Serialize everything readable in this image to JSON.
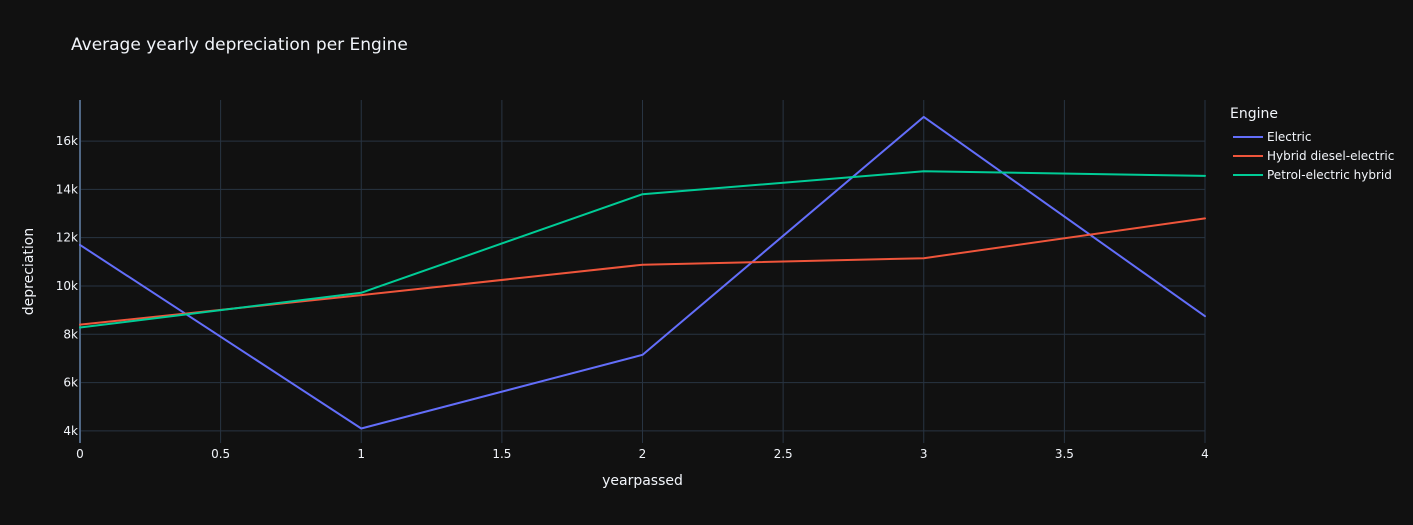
{
  "chart_data": {
    "type": "line",
    "title": "Average yearly depreciation per Engine",
    "xlabel": "yearpassed",
    "ylabel": "depreciation",
    "xlim": [
      0,
      4
    ],
    "ylim": [
      3500,
      17700
    ],
    "x_ticks": [
      {
        "value": 0,
        "label": "0"
      },
      {
        "value": 0.5,
        "label": "0.5"
      },
      {
        "value": 1,
        "label": "1"
      },
      {
        "value": 1.5,
        "label": "1.5"
      },
      {
        "value": 2,
        "label": "2"
      },
      {
        "value": 2.5,
        "label": "2.5"
      },
      {
        "value": 3,
        "label": "3"
      },
      {
        "value": 3.5,
        "label": "3.5"
      },
      {
        "value": 4,
        "label": "4"
      }
    ],
    "y_ticks": [
      {
        "value": 4000,
        "label": "4k"
      },
      {
        "value": 6000,
        "label": "6k"
      },
      {
        "value": 8000,
        "label": "8k"
      },
      {
        "value": 10000,
        "label": "10k"
      },
      {
        "value": 12000,
        "label": "12k"
      },
      {
        "value": 14000,
        "label": "14k"
      },
      {
        "value": 16000,
        "label": "16k"
      }
    ],
    "grid": true,
    "legend": {
      "title": "Engine",
      "placement": "top-right, outside plot"
    },
    "x": [
      0,
      1,
      2,
      3,
      4
    ],
    "series": [
      {
        "name": "Electric",
        "color": "#636efa",
        "values": [
          11700,
          4100,
          7150,
          17000,
          8750
        ]
      },
      {
        "name": "Hybrid diesel-electric",
        "color": "#ef553b",
        "values": [
          8400,
          9620,
          10880,
          11150,
          12800
        ]
      },
      {
        "name": "Petrol-electric hybrid",
        "color": "#00cc96",
        "values": [
          8280,
          9720,
          13800,
          14750,
          14560
        ]
      }
    ]
  }
}
